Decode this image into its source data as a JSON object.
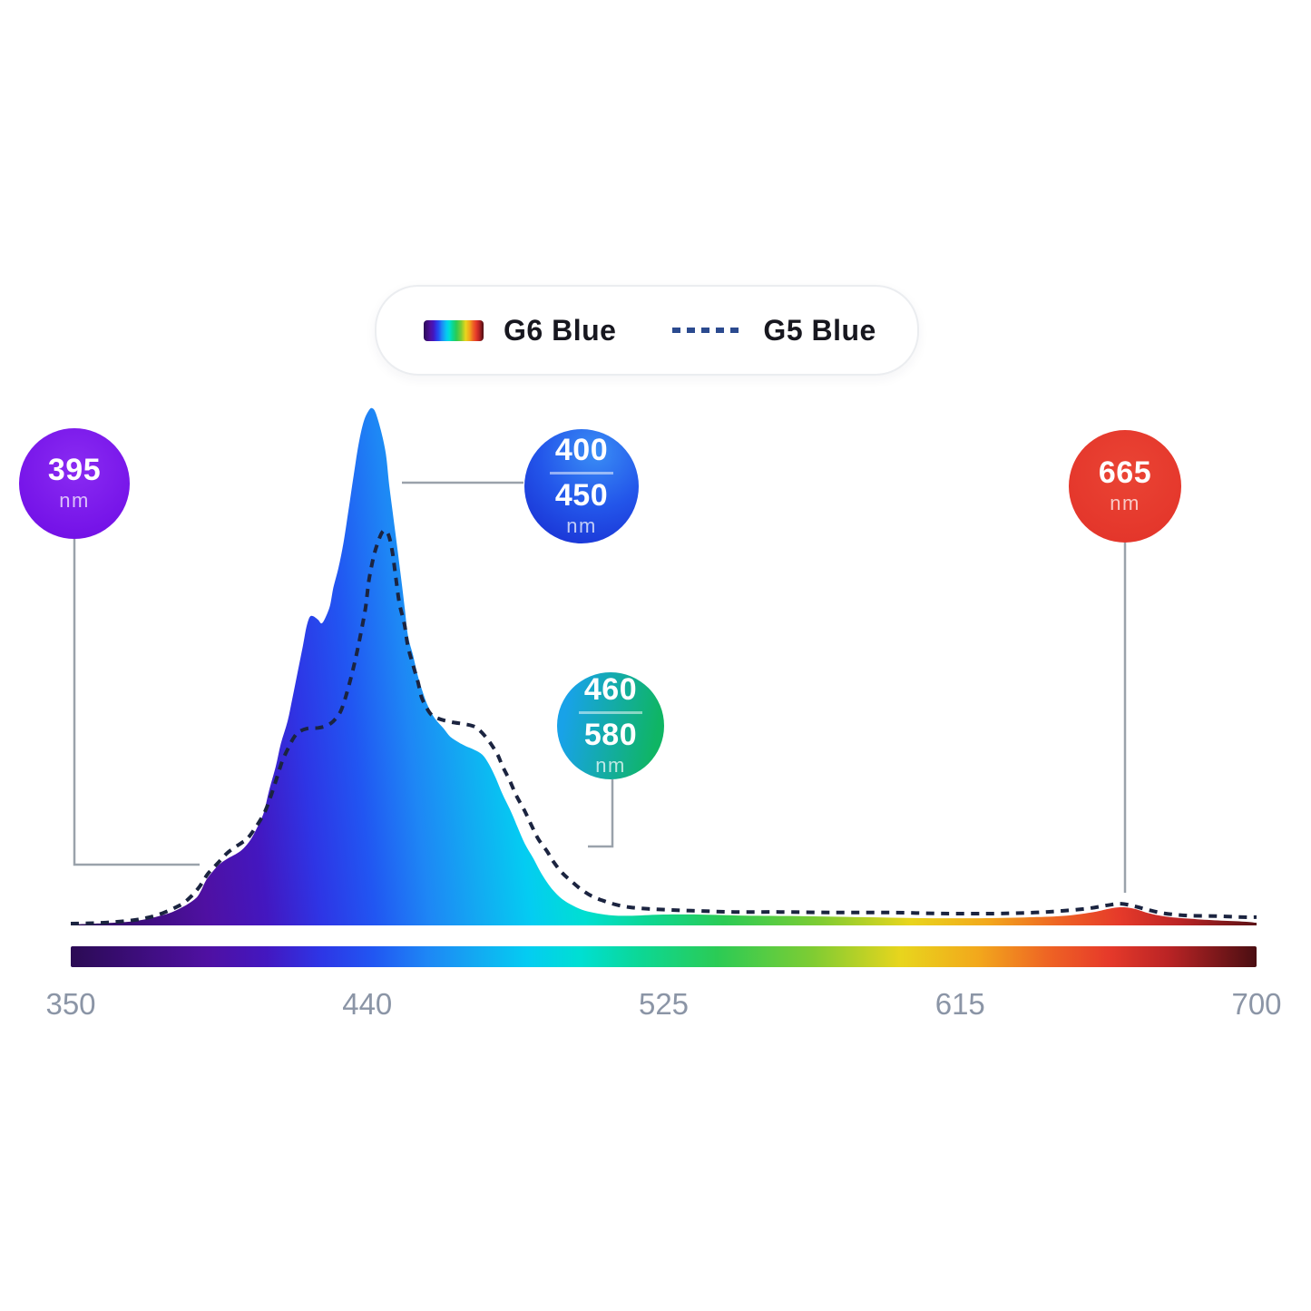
{
  "page": {
    "background": "#ffffff"
  },
  "legend": {
    "g6": {
      "label": "G6 Blue",
      "swatch": "spectrum-gradient"
    },
    "g5": {
      "label": "G5 Blue",
      "dash_color": "#2b4a8f"
    }
  },
  "callouts": {
    "c395": {
      "value": "395",
      "unit": "nm",
      "bg": "radial-gradient(circle at 52% 36%, #8a2bf2 0%, #7513e8 72%, #6d0edd 100%)"
    },
    "c400_450": {
      "value_top": "400",
      "value_bottom": "450",
      "unit": "nm",
      "bg": "radial-gradient(circle at 62% 20%, #3a8ef5 0%, #2356ea 48%, #1728ce 100%)"
    },
    "c460_580": {
      "value_top": "460",
      "value_bottom": "580",
      "unit": "nm",
      "bg": "linear-gradient(100deg, #18a2e8 12%, #0fb564 88%)"
    },
    "c665": {
      "value": "665",
      "unit": "nm",
      "bg": "radial-gradient(circle at 52% 38%, #ea4434 0%, #e4362b 75%)"
    }
  },
  "colors": {
    "connector_gray": "#9aa2ab",
    "g5_line": "#1b2440",
    "axis_label": "#8b95a6",
    "legend_text": "#17171f"
  },
  "chart_data": {
    "type": "area",
    "title": "",
    "xlabel": "",
    "ylabel": "",
    "x_unit": "nm",
    "x_range": [
      350,
      700
    ],
    "x_ticks": [
      "350",
      "440",
      "525",
      "615",
      "700"
    ],
    "y_range_relative_intensity_pct": [
      0,
      100
    ],
    "grid": false,
    "legend_position": "top-center",
    "spectrum_gradient": [
      {
        "pos": 0.0,
        "color": "#2b0b54"
      },
      {
        "pos": 0.055,
        "color": "#3c0d7a"
      },
      {
        "pos": 0.115,
        "color": "#4f10a2"
      },
      {
        "pos": 0.165,
        "color": "#4317c0"
      },
      {
        "pos": 0.21,
        "color": "#2e35e5"
      },
      {
        "pos": 0.255,
        "color": "#2156f2"
      },
      {
        "pos": 0.3,
        "color": "#1e86f5"
      },
      {
        "pos": 0.345,
        "color": "#12acf2"
      },
      {
        "pos": 0.385,
        "color": "#04ccf2"
      },
      {
        "pos": 0.43,
        "color": "#00dfd2"
      },
      {
        "pos": 0.48,
        "color": "#0cd795"
      },
      {
        "pos": 0.545,
        "color": "#2bcb55"
      },
      {
        "pos": 0.625,
        "color": "#7ecc33"
      },
      {
        "pos": 0.7,
        "color": "#e8d51d"
      },
      {
        "pos": 0.765,
        "color": "#f2a81c"
      },
      {
        "pos": 0.825,
        "color": "#ee6324"
      },
      {
        "pos": 0.875,
        "color": "#e63a2a"
      },
      {
        "pos": 0.925,
        "color": "#bb2425"
      },
      {
        "pos": 1.0,
        "color": "#4a0e12"
      }
    ],
    "series": [
      {
        "name": "G6 Blue",
        "style": "filled-area-spectrum-gradient",
        "points": [
          [
            350,
            0.2
          ],
          [
            359,
            0.4
          ],
          [
            367,
            0.7
          ],
          [
            372,
            1.2
          ],
          [
            376,
            1.8
          ],
          [
            380,
            2.6
          ],
          [
            384,
            3.9
          ],
          [
            387,
            5.3
          ],
          [
            388.5,
            6.8
          ],
          [
            390,
            8.8
          ],
          [
            392,
            10.5
          ],
          [
            394,
            11.9
          ],
          [
            396.5,
            13.0
          ],
          [
            399,
            13.9
          ],
          [
            401,
            14.9
          ],
          [
            403,
            16.5
          ],
          [
            405,
            18.9
          ],
          [
            407,
            21.9
          ],
          [
            408.5,
            26.0
          ],
          [
            410.5,
            30.7
          ],
          [
            412,
            35.1
          ],
          [
            414,
            39.5
          ],
          [
            415.5,
            44.2
          ],
          [
            417,
            49.1
          ],
          [
            418.5,
            54.0
          ],
          [
            419.5,
            57.5
          ],
          [
            420.5,
            59.6
          ],
          [
            421.5,
            59.8
          ],
          [
            423,
            59.1
          ],
          [
            424,
            58.4
          ],
          [
            425,
            59.3
          ],
          [
            426.5,
            61.8
          ],
          [
            427.5,
            65.3
          ],
          [
            429,
            69.1
          ],
          [
            430.5,
            74.0
          ],
          [
            432,
            80.4
          ],
          [
            433.5,
            87.0
          ],
          [
            435,
            93.2
          ],
          [
            436.5,
            97.5
          ],
          [
            438,
            99.6
          ],
          [
            439,
            100
          ],
          [
            440,
            99.1
          ],
          [
            441.5,
            95.8
          ],
          [
            443,
            91.2
          ],
          [
            444,
            85.1
          ],
          [
            445.5,
            77.5
          ],
          [
            447,
            69.8
          ],
          [
            448.5,
            61.8
          ],
          [
            449.5,
            56.1
          ],
          [
            451,
            52.3
          ],
          [
            452.5,
            48.1
          ],
          [
            454,
            44.9
          ],
          [
            455.5,
            42.3
          ],
          [
            457.5,
            40.0
          ],
          [
            460,
            38.1
          ],
          [
            462,
            36.5
          ],
          [
            464.5,
            35.4
          ],
          [
            466.5,
            34.7
          ],
          [
            469,
            34.0
          ],
          [
            471.5,
            33.0
          ],
          [
            473.5,
            31.1
          ],
          [
            475.5,
            28.4
          ],
          [
            477.5,
            25.3
          ],
          [
            480,
            21.9
          ],
          [
            482,
            18.8
          ],
          [
            484,
            15.8
          ],
          [
            486.5,
            13.0
          ],
          [
            488.5,
            10.5
          ],
          [
            490.5,
            8.4
          ],
          [
            492.5,
            6.7
          ],
          [
            495,
            5.1
          ],
          [
            498,
            3.9
          ],
          [
            501,
            3.0
          ],
          [
            504,
            2.5
          ],
          [
            507.5,
            2.1
          ],
          [
            511,
            1.9
          ],
          [
            516.5,
            1.9
          ],
          [
            525,
            2.1
          ],
          [
            535,
            2.1
          ],
          [
            549,
            1.9
          ],
          [
            565,
            1.8
          ],
          [
            583.5,
            1.6
          ],
          [
            602,
            1.4
          ],
          [
            621,
            1.4
          ],
          [
            634.5,
            1.6
          ],
          [
            644,
            1.9
          ],
          [
            652,
            2.6
          ],
          [
            657,
            3.3
          ],
          [
            660.5,
            3.5
          ],
          [
            664,
            3.2
          ],
          [
            668.5,
            2.3
          ],
          [
            674.5,
            1.6
          ],
          [
            682.5,
            1.2
          ],
          [
            690.5,
            0.9
          ],
          [
            697,
            0.7
          ],
          [
            700,
            0.5
          ]
        ]
      },
      {
        "name": "G5 Blue",
        "style": "dashed-line",
        "color": "#1b2440",
        "points": [
          [
            350,
            0.35
          ],
          [
            359,
            0.5
          ],
          [
            367,
            0.9
          ],
          [
            372,
            1.4
          ],
          [
            376,
            2.1
          ],
          [
            380,
            3.2
          ],
          [
            383,
            4.2
          ],
          [
            385.5,
            5.6
          ],
          [
            388,
            7.5
          ],
          [
            390.5,
            10.0
          ],
          [
            393.5,
            12.1
          ],
          [
            396,
            13.9
          ],
          [
            398,
            14.9
          ],
          [
            400.5,
            16.0
          ],
          [
            402,
            16.7
          ],
          [
            404,
            18.4
          ],
          [
            407,
            21.6
          ],
          [
            409,
            24.9
          ],
          [
            411,
            28.9
          ],
          [
            412.5,
            31.9
          ],
          [
            414.5,
            34.7
          ],
          [
            416,
            36.5
          ],
          [
            417.5,
            37.5
          ],
          [
            420,
            38.1
          ],
          [
            423,
            38.2
          ],
          [
            425.5,
            38.6
          ],
          [
            427.5,
            39.5
          ],
          [
            429.5,
            41.2
          ],
          [
            431,
            43.9
          ],
          [
            432.5,
            47.4
          ],
          [
            434,
            51.4
          ],
          [
            435.5,
            56.1
          ],
          [
            437,
            61.4
          ],
          [
            438,
            66.7
          ],
          [
            439.5,
            71.6
          ],
          [
            441,
            74.7
          ],
          [
            442,
            76.1
          ],
          [
            443,
            76.3
          ],
          [
            444,
            75.1
          ],
          [
            445,
            71.9
          ],
          [
            446,
            67.0
          ],
          [
            447,
            62.3
          ],
          [
            448.5,
            58.2
          ],
          [
            449.5,
            54.0
          ],
          [
            451,
            50.4
          ],
          [
            452.5,
            47.0
          ],
          [
            453.5,
            44.2
          ],
          [
            455,
            42.1
          ],
          [
            456.5,
            40.7
          ],
          [
            458.5,
            40.0
          ],
          [
            460.5,
            39.6
          ],
          [
            462.5,
            39.3
          ],
          [
            464.5,
            39.1
          ],
          [
            466.5,
            38.9
          ],
          [
            468.5,
            38.6
          ],
          [
            470,
            38.1
          ],
          [
            472,
            36.8
          ],
          [
            474,
            35.1
          ],
          [
            476,
            33.0
          ],
          [
            477.5,
            30.7
          ],
          [
            479.5,
            28.1
          ],
          [
            481.5,
            25.1
          ],
          [
            484,
            22.1
          ],
          [
            486,
            19.3
          ],
          [
            488,
            16.7
          ],
          [
            490.5,
            14.4
          ],
          [
            492.5,
            12.3
          ],
          [
            495,
            10.2
          ],
          [
            498,
            8.4
          ],
          [
            501,
            6.8
          ],
          [
            504,
            5.6
          ],
          [
            507.5,
            4.7
          ],
          [
            511,
            4.0
          ],
          [
            515,
            3.5
          ],
          [
            520.5,
            3.2
          ],
          [
            527,
            3.0
          ],
          [
            535.5,
            2.8
          ],
          [
            546,
            2.6
          ],
          [
            559.5,
            2.6
          ],
          [
            575.5,
            2.5
          ],
          [
            591.5,
            2.5
          ],
          [
            607.5,
            2.3
          ],
          [
            623.5,
            2.3
          ],
          [
            634.5,
            2.5
          ],
          [
            642.5,
            2.8
          ],
          [
            650.5,
            3.3
          ],
          [
            656,
            3.9
          ],
          [
            660,
            4.2
          ],
          [
            664,
            3.7
          ],
          [
            668,
            3.0
          ],
          [
            673,
            2.3
          ],
          [
            680,
            1.9
          ],
          [
            688,
            1.8
          ],
          [
            696,
            1.6
          ],
          [
            700,
            1.6
          ]
        ]
      }
    ],
    "annotations": [
      {
        "label": "395 nm",
        "wavelength_nm": 395
      },
      {
        "label": "400-450 nm",
        "wavelength_nm": [
          400,
          450
        ]
      },
      {
        "label": "460-580 nm",
        "wavelength_nm": [
          460,
          580
        ]
      },
      {
        "label": "665 nm",
        "wavelength_nm": 665
      }
    ]
  }
}
